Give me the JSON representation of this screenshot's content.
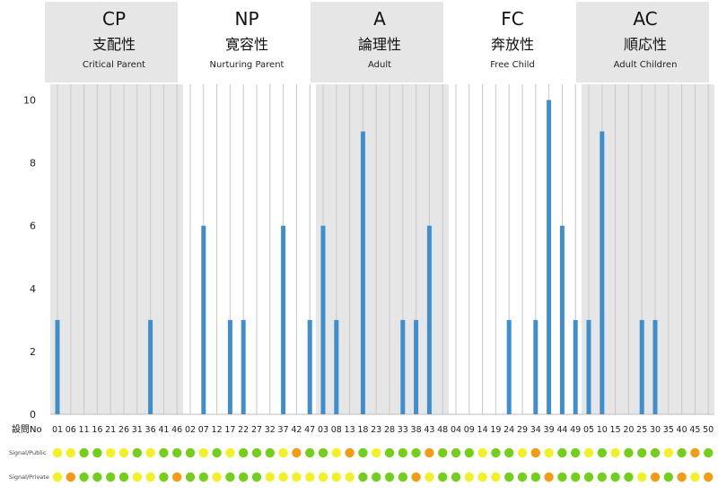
{
  "chart_data": {
    "type": "bar",
    "ylim": [
      0,
      10.5
    ],
    "yticks": [
      0,
      2,
      4,
      6,
      8,
      10
    ],
    "grid": true,
    "color": "#3f8fcf",
    "groups": [
      {
        "code": "CP",
        "jp": "支配性",
        "en": "Critical Parent",
        "shaded": true,
        "categories": [
          "01",
          "06",
          "11",
          "16",
          "21",
          "26",
          "31",
          "36",
          "41",
          "46"
        ],
        "values": [
          3,
          0,
          0,
          0,
          0,
          0,
          0,
          3,
          0,
          0
        ]
      },
      {
        "code": "NP",
        "jp": "寛容性",
        "en": "Nurturing Parent",
        "shaded": false,
        "categories": [
          "02",
          "07",
          "12",
          "17",
          "22",
          "27",
          "32",
          "37",
          "42",
          "47"
        ],
        "values": [
          0,
          6,
          0,
          3,
          3,
          0,
          0,
          6,
          0,
          3
        ]
      },
      {
        "code": "A",
        "jp": "論理性",
        "en": "Adult",
        "shaded": true,
        "categories": [
          "03",
          "08",
          "13",
          "18",
          "23",
          "28",
          "33",
          "38",
          "43",
          "48"
        ],
        "values": [
          6,
          3,
          0,
          9,
          0,
          0,
          3,
          3,
          6,
          0
        ]
      },
      {
        "code": "FC",
        "jp": "奔放性",
        "en": "Free Child",
        "shaded": false,
        "categories": [
          "04",
          "09",
          "14",
          "19",
          "24",
          "29",
          "34",
          "39",
          "44",
          "49"
        ],
        "values": [
          0,
          0,
          0,
          0,
          3,
          0,
          3,
          10,
          6,
          3
        ]
      },
      {
        "code": "AC",
        "jp": "順応性",
        "en": "Adult Children",
        "shaded": true,
        "categories": [
          "05",
          "10",
          "15",
          "20",
          "25",
          "30",
          "35",
          "40",
          "45",
          "50"
        ],
        "values": [
          3,
          9,
          0,
          0,
          3,
          3,
          0,
          0,
          0,
          0
        ]
      }
    ],
    "x_row_label": "設問No",
    "signal_rows": [
      {
        "label": "Signal/Public",
        "colors": [
          "y",
          "y",
          "g",
          "g",
          "y",
          "y",
          "g",
          "y",
          "g",
          "g",
          "g",
          "y",
          "g",
          "y",
          "g",
          "g",
          "g",
          "y",
          "o",
          "g",
          "g",
          "y",
          "o",
          "g",
          "y",
          "g",
          "g",
          "g",
          "o",
          "g",
          "g",
          "g",
          "y",
          "g",
          "g",
          "y",
          "o",
          "y",
          "g",
          "g",
          "y",
          "g",
          "y",
          "g",
          "g",
          "g",
          "y",
          "g",
          "o",
          "g"
        ]
      },
      {
        "label": "Signal/Private",
        "colors": [
          "y",
          "o",
          "g",
          "g",
          "g",
          "g",
          "y",
          "y",
          "g",
          "o",
          "g",
          "g",
          "y",
          "g",
          "g",
          "g",
          "y",
          "y",
          "y",
          "y",
          "y",
          "y",
          "y",
          "g",
          "g",
          "g",
          "g",
          "o",
          "y",
          "g",
          "g",
          "y",
          "y",
          "y",
          "g",
          "g",
          "g",
          "o",
          "g",
          "g",
          "g",
          "g",
          "g",
          "g",
          "y",
          "o",
          "g",
          "o",
          "y",
          "o"
        ]
      }
    ],
    "signal_colors": {
      "y": "#f2f222",
      "g": "#72d117",
      "o": "#f59b10"
    }
  }
}
